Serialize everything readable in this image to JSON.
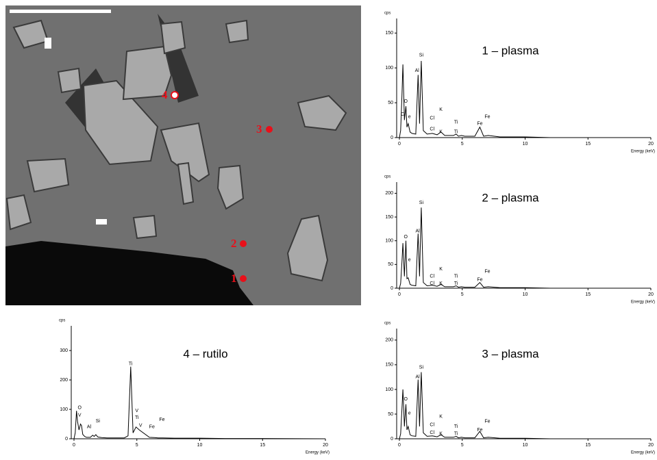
{
  "image": {
    "points": [
      "1",
      "2",
      "3",
      "4"
    ]
  },
  "chart_data": [
    {
      "type": "line",
      "title": "1 – plasma",
      "y_label": "cps",
      "x_label": "Energy (keV)",
      "color": "#000000",
      "x": [
        0,
        0.1,
        0.2,
        0.28,
        0.4,
        0.52,
        0.6,
        0.7,
        0.85,
        1.0,
        1.3,
        1.49,
        1.6,
        1.74,
        1.9,
        2.2,
        2.62,
        3.0,
        3.31,
        3.6,
        4.0,
        4.3,
        4.51,
        4.7,
        4.93,
        5.2,
        6.0,
        6.4,
        6.7,
        7.06,
        8,
        10,
        12,
        15,
        20
      ],
      "values": [
        0,
        10,
        60,
        105,
        25,
        45,
        15,
        20,
        8,
        6,
        5,
        90,
        20,
        110,
        10,
        5,
        6,
        4,
        8,
        3,
        3,
        3,
        5,
        2,
        3,
        2,
        2,
        15,
        2,
        3,
        1,
        1,
        0,
        0,
        0
      ],
      "xlim": [
        0,
        20
      ],
      "xticks": [
        0,
        5,
        10,
        15,
        20
      ],
      "ylim": [
        0,
        165
      ],
      "yticks": [
        0,
        50,
        100,
        150
      ],
      "annotations": [
        {
          "text": "Si",
          "x": 1.74,
          "y": 118
        },
        {
          "text": "Al",
          "x": 1.4,
          "y": 96
        },
        {
          "text": "O",
          "x": 0.5,
          "y": 52
        },
        {
          "text": "C",
          "x": 0.25,
          "y": 33
        },
        {
          "text": "e",
          "x": 0.8,
          "y": 30
        },
        {
          "text": "K",
          "x": 3.3,
          "y": 40
        },
        {
          "text": "Cl",
          "x": 2.6,
          "y": 28
        },
        {
          "text": "Cl",
          "x": 2.6,
          "y": 12
        },
        {
          "text": "K",
          "x": 3.3,
          "y": 8
        },
        {
          "text": "Ti",
          "x": 4.5,
          "y": 22
        },
        {
          "text": "Ti",
          "x": 4.5,
          "y": 8
        },
        {
          "text": "Fe",
          "x": 6.4,
          "y": 20
        },
        {
          "text": "Fe",
          "x": 7.0,
          "y": 30
        }
      ]
    },
    {
      "type": "line",
      "title": "2 – plasma",
      "y_label": "cps",
      "x_label": "Energy (keV)",
      "color": "#000000",
      "x": [
        0,
        0.1,
        0.2,
        0.28,
        0.4,
        0.52,
        0.6,
        0.7,
        0.85,
        1.0,
        1.3,
        1.49,
        1.6,
        1.74,
        1.9,
        2.2,
        2.62,
        3.0,
        3.31,
        3.6,
        4.0,
        4.3,
        4.51,
        4.7,
        4.93,
        5.2,
        6.0,
        6.4,
        6.7,
        7.06,
        8,
        10,
        12,
        15,
        20
      ],
      "values": [
        0,
        10,
        55,
        95,
        25,
        100,
        20,
        22,
        8,
        6,
        5,
        115,
        25,
        170,
        12,
        5,
        6,
        4,
        8,
        3,
        3,
        3,
        5,
        2,
        3,
        2,
        2,
        12,
        2,
        3,
        1,
        1,
        0,
        0,
        0
      ],
      "xlim": [
        0,
        20
      ],
      "xticks": [
        0,
        5,
        10,
        15,
        20
      ],
      "ylim": [
        0,
        215
      ],
      "yticks": [
        0,
        50,
        100,
        150,
        200
      ],
      "annotations": [
        {
          "text": "Si",
          "x": 1.74,
          "y": 180
        },
        {
          "text": "Al",
          "x": 1.45,
          "y": 120
        },
        {
          "text": "O",
          "x": 0.5,
          "y": 108
        },
        {
          "text": "e",
          "x": 0.8,
          "y": 60
        },
        {
          "text": "K",
          "x": 3.3,
          "y": 40
        },
        {
          "text": "Cl",
          "x": 2.6,
          "y": 25
        },
        {
          "text": "Cl",
          "x": 2.6,
          "y": 10
        },
        {
          "text": "K",
          "x": 3.3,
          "y": 10
        },
        {
          "text": "Ti",
          "x": 4.5,
          "y": 25
        },
        {
          "text": "Ti",
          "x": 4.5,
          "y": 10
        },
        {
          "text": "Fe",
          "x": 6.4,
          "y": 18
        },
        {
          "text": "Fe",
          "x": 7.0,
          "y": 35
        }
      ]
    },
    {
      "type": "line",
      "title": "3 – plasma",
      "y_label": "cps",
      "x_label": "Energy (keV)",
      "color": "#000000",
      "x": [
        0,
        0.1,
        0.2,
        0.28,
        0.4,
        0.52,
        0.6,
        0.7,
        0.85,
        1.0,
        1.3,
        1.49,
        1.6,
        1.74,
        1.9,
        2.2,
        2.62,
        3.0,
        3.31,
        3.6,
        4.0,
        4.3,
        4.51,
        4.7,
        4.93,
        5.2,
        6.0,
        6.4,
        6.7,
        7.06,
        8,
        10,
        12,
        15,
        20
      ],
      "values": [
        0,
        10,
        60,
        100,
        25,
        70,
        18,
        25,
        8,
        6,
        5,
        120,
        25,
        135,
        12,
        5,
        6,
        4,
        8,
        3,
        3,
        3,
        5,
        2,
        3,
        2,
        2,
        15,
        2,
        3,
        1,
        1,
        0,
        0,
        0
      ],
      "xlim": [
        0,
        20
      ],
      "xticks": [
        0,
        5,
        10,
        15,
        20
      ],
      "ylim": [
        0,
        215
      ],
      "yticks": [
        0,
        50,
        100,
        150,
        200
      ],
      "annotations": [
        {
          "text": "Si",
          "x": 1.74,
          "y": 145
        },
        {
          "text": "Al",
          "x": 1.45,
          "y": 125
        },
        {
          "text": "O",
          "x": 0.5,
          "y": 80
        },
        {
          "text": "e",
          "x": 0.8,
          "y": 52
        },
        {
          "text": "K",
          "x": 3.3,
          "y": 45
        },
        {
          "text": "Cl",
          "x": 2.6,
          "y": 28
        },
        {
          "text": "Cl",
          "x": 2.6,
          "y": 12
        },
        {
          "text": "K",
          "x": 3.3,
          "y": 10
        },
        {
          "text": "Ti",
          "x": 4.5,
          "y": 25
        },
        {
          "text": "Ti",
          "x": 4.5,
          "y": 10
        },
        {
          "text": "Fe",
          "x": 6.4,
          "y": 18
        },
        {
          "text": "Fe",
          "x": 7.0,
          "y": 35
        }
      ]
    },
    {
      "type": "line",
      "title": "4 – rutilo",
      "y_label": "cps",
      "x_label": "Energy (keV)",
      "color": "#000000",
      "x": [
        0,
        0.1,
        0.2,
        0.28,
        0.4,
        0.52,
        0.6,
        0.7,
        0.85,
        1.0,
        1.3,
        1.49,
        1.6,
        1.74,
        1.9,
        2.2,
        2.62,
        3.0,
        3.31,
        3.6,
        4.0,
        4.3,
        4.51,
        4.7,
        4.93,
        5.2,
        6.0,
        6.4,
        6.7,
        7.06,
        8,
        10,
        12,
        15,
        20
      ],
      "values": [
        0,
        20,
        95,
        60,
        30,
        50,
        45,
        15,
        8,
        5,
        5,
        12,
        8,
        14,
        6,
        4,
        3,
        3,
        3,
        3,
        3,
        10,
        245,
        20,
        40,
        30,
        5,
        4,
        3,
        3,
        2,
        2,
        1,
        1,
        0
      ],
      "xlim": [
        0,
        20
      ],
      "xticks": [
        0,
        5,
        10,
        15,
        20
      ],
      "ylim": [
        0,
        370
      ],
      "yticks": [
        0,
        100,
        200,
        300
      ],
      "annotations": [
        {
          "text": "Ti",
          "x": 4.5,
          "y": 255
        },
        {
          "text": "O",
          "x": 0.45,
          "y": 105
        },
        {
          "text": "V",
          "x": 0.45,
          "y": 80
        },
        {
          "text": "Al",
          "x": 1.2,
          "y": 40
        },
        {
          "text": "Si",
          "x": 1.9,
          "y": 60
        },
        {
          "text": "V",
          "x": 5.0,
          "y": 95
        },
        {
          "text": "Ti",
          "x": 5.0,
          "y": 72
        },
        {
          "text": "V",
          "x": 5.3,
          "y": 45
        },
        {
          "text": "Fe",
          "x": 7.0,
          "y": 65
        },
        {
          "text": "Fe",
          "x": 6.2,
          "y": 40
        }
      ]
    }
  ]
}
